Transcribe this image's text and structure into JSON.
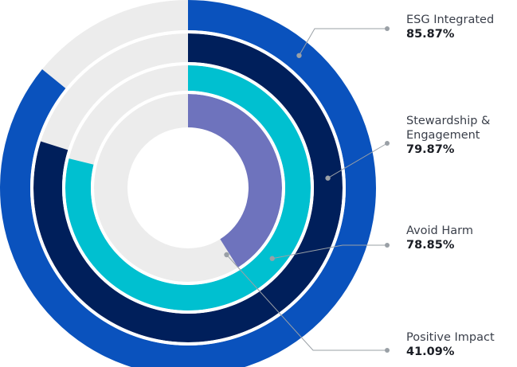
{
  "chart_data": {
    "type": "radial-bar",
    "track_color": "#ececec",
    "series": [
      {
        "name": "ESG Integrated",
        "label_lines": [
          "ESG Integrated"
        ],
        "value": 85.87,
        "value_text": "85.87%",
        "color": "#0a52bd"
      },
      {
        "name": "Stewardship & Engagement",
        "label_lines": [
          "Stewardship &",
          "Engagement"
        ],
        "value": 79.87,
        "value_text": "79.87%",
        "color": "#001f5b"
      },
      {
        "name": "Avoid Harm",
        "label_lines": [
          "Avoid Harm"
        ],
        "value": 78.85,
        "value_text": "78.85%",
        "color": "#00c0d0"
      },
      {
        "name": "Positive Impact",
        "label_lines": [
          "Positive Impact"
        ],
        "value": 41.09,
        "value_text": "41.09%",
        "color": "#6e73bd"
      }
    ]
  }
}
